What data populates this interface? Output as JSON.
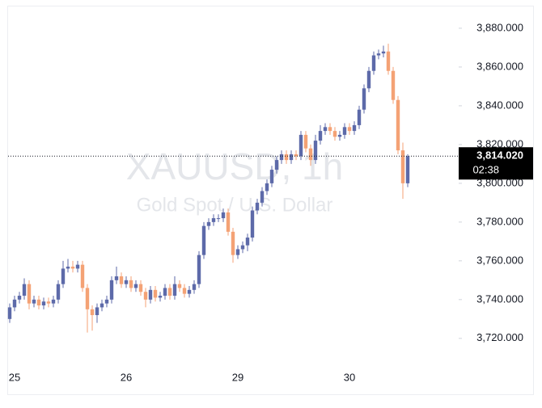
{
  "chart_data": {
    "type": "candlestick",
    "title": "XAUUSD, 1h",
    "subtitle": "Gold Spot / U.S. Dollar",
    "categories": [
      null,
      "25",
      null,
      null,
      null,
      null,
      null,
      null,
      null,
      null,
      null,
      null,
      null,
      null,
      null,
      null,
      null,
      null,
      null,
      null,
      null,
      null,
      null,
      null,
      "26",
      null,
      null,
      null,
      null,
      null,
      null,
      null,
      null,
      null,
      null,
      null,
      null,
      null,
      null,
      null,
      null,
      null,
      null,
      null,
      null,
      null,
      null,
      "29",
      null,
      null,
      null,
      null,
      null,
      null,
      null,
      null,
      null,
      null,
      null,
      null,
      null,
      null,
      null,
      null,
      null,
      null,
      null,
      null,
      null,
      null,
      "30",
      null,
      null,
      null,
      null,
      null,
      null,
      null,
      null,
      null,
      null,
      null,
      null
    ],
    "open": [
      3730,
      3736,
      3740,
      3742,
      3748,
      3738,
      3740,
      3737,
      3739,
      3738,
      3740,
      3748,
      3756,
      3757,
      3756,
      3758,
      3746,
      3735,
      3732,
      3736,
      3738,
      3740,
      3750,
      3752,
      3748,
      3750,
      3746,
      3748,
      3744,
      3740,
      3745,
      3741,
      3742,
      3746,
      3742,
      3748,
      3746,
      3743,
      3745,
      3748,
      3763,
      3778,
      3780,
      3782,
      3782,
      3785,
      3775,
      3763,
      3766,
      3768,
      3772,
      3786,
      3790,
      3796,
      3800,
      3807,
      3812,
      3815,
      3812,
      3815,
      3814,
      3825,
      3818,
      3812,
      3822,
      3827,
      3829,
      3827,
      3824,
      3825,
      3829,
      3827,
      3830,
      3838,
      3849,
      3858,
      3866,
      3867,
      3868,
      3858,
      3843,
      3817,
      3800
    ],
    "high": [
      3738,
      3742,
      3744,
      3751,
      3750,
      3742,
      3742,
      3741,
      3741,
      3742,
      3750,
      3760,
      3761,
      3760,
      3760,
      3760,
      3748,
      3737,
      3738,
      3740,
      3742,
      3752,
      3757,
      3754,
      3752,
      3752,
      3750,
      3750,
      3746,
      3747,
      3747,
      3744,
      3748,
      3748,
      3752,
      3750,
      3748,
      3747,
      3750,
      3765,
      3780,
      3782,
      3784,
      3784,
      3787,
      3787,
      3777,
      3768,
      3770,
      3774,
      3788,
      3792,
      3798,
      3802,
      3809,
      3814,
      3817,
      3817,
      3817,
      3817,
      3827,
      3827,
      3820,
      3825,
      3830,
      3831,
      3831,
      3829,
      3827,
      3831,
      3831,
      3832,
      3840,
      3851,
      3860,
      3868,
      3869,
      3871,
      3872,
      3860,
      3845,
      3821,
      3815
    ],
    "low": [
      3728,
      3734,
      3738,
      3740,
      3735,
      3736,
      3735,
      3735,
      3736,
      3736,
      3738,
      3746,
      3754,
      3754,
      3754,
      3744,
      3723,
      3724,
      3728,
      3734,
      3736,
      3738,
      3748,
      3746,
      3746,
      3744,
      3744,
      3742,
      3736,
      3738,
      3739,
      3739,
      3740,
      3740,
      3740,
      3744,
      3741,
      3741,
      3743,
      3746,
      3761,
      3776,
      3778,
      3780,
      3780,
      3773,
      3759,
      3761,
      3764,
      3765,
      3770,
      3784,
      3788,
      3794,
      3798,
      3805,
      3810,
      3810,
      3810,
      3812,
      3812,
      3816,
      3809,
      3810,
      3820,
      3825,
      3825,
      3822,
      3822,
      3823,
      3825,
      3825,
      3828,
      3836,
      3847,
      3856,
      3864,
      3865,
      3856,
      3841,
      3815,
      3792,
      3798
    ],
    "close": [
      3736,
      3740,
      3742,
      3748,
      3738,
      3740,
      3737,
      3739,
      3738,
      3740,
      3748,
      3756,
      3757,
      3756,
      3758,
      3746,
      3735,
      3732,
      3736,
      3738,
      3740,
      3750,
      3752,
      3748,
      3750,
      3746,
      3748,
      3744,
      3740,
      3745,
      3741,
      3742,
      3746,
      3742,
      3748,
      3746,
      3743,
      3745,
      3748,
      3763,
      3778,
      3780,
      3782,
      3782,
      3785,
      3775,
      3763,
      3766,
      3768,
      3772,
      3786,
      3790,
      3796,
      3800,
      3807,
      3812,
      3815,
      3812,
      3815,
      3814,
      3825,
      3818,
      3812,
      3822,
      3827,
      3829,
      3827,
      3824,
      3825,
      3829,
      3827,
      3830,
      3838,
      3849,
      3858,
      3866,
      3867,
      3868,
      3858,
      3843,
      3817,
      3800,
      3814
    ],
    "up_color": "#5d6aa9",
    "down_color": "#f4a275",
    "ylim": [
      3707,
      3890.4
    ],
    "yticks": [
      {
        "value": 3720,
        "label": "3,720.000"
      },
      {
        "value": 3740,
        "label": "3,740.000"
      },
      {
        "value": 3760,
        "label": "3,760.000"
      },
      {
        "value": 3780,
        "label": "3,780.000"
      },
      {
        "value": 3800,
        "label": "3,800.000"
      },
      {
        "value": 3820,
        "label": "3,820.000"
      },
      {
        "value": 3840,
        "label": "3,840.000"
      },
      {
        "value": 3860,
        "label": "3,860.000"
      },
      {
        "value": 3880,
        "label": "3,880.000"
      }
    ],
    "last_price": {
      "value": 3814.02,
      "label": "3,814.020"
    },
    "countdown": "02:38"
  }
}
